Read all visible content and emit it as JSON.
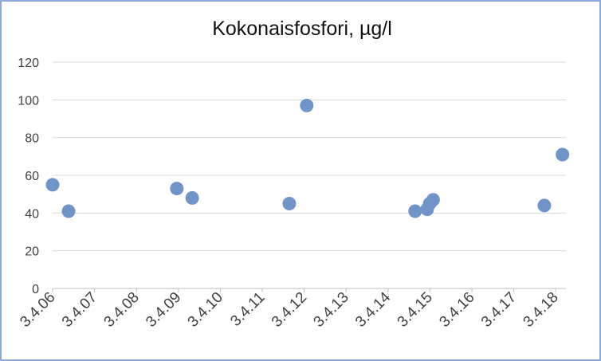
{
  "chart_data": {
    "type": "scatter",
    "title": "Kokonaisfosfori, µg/l",
    "xlabel": "",
    "ylabel": "",
    "x_ticks": [
      "3.4.06",
      "3.4.07",
      "3.4.08",
      "3.4.09",
      "3.4.10",
      "3.4.11",
      "3.4.12",
      "3.4.13",
      "3.4.14",
      "3.4.15",
      "3.4.16",
      "3.4.17",
      "3.4.18"
    ],
    "y_ticks": [
      "0",
      "20",
      "40",
      "60",
      "80",
      "100",
      "120"
    ],
    "ylim": [
      0,
      120
    ],
    "xlim": [
      "2006-04-03",
      "2018-07-01"
    ],
    "grid": "horizontal",
    "legend": "none",
    "marker_color": "#7094c7",
    "points": [
      {
        "x": "2006-04-03",
        "y": 55
      },
      {
        "x": "2006-08-20",
        "y": 41
      },
      {
        "x": "2009-03-20",
        "y": 53
      },
      {
        "x": "2009-08-01",
        "y": 48
      },
      {
        "x": "2011-11-25",
        "y": 45
      },
      {
        "x": "2012-04-25",
        "y": 97
      },
      {
        "x": "2014-11-25",
        "y": 41
      },
      {
        "x": "2015-03-10",
        "y": 42
      },
      {
        "x": "2015-04-01",
        "y": 45
      },
      {
        "x": "2015-05-01",
        "y": 47
      },
      {
        "x": "2017-12-25",
        "y": 44
      },
      {
        "x": "2018-06-01",
        "y": 71
      }
    ]
  }
}
